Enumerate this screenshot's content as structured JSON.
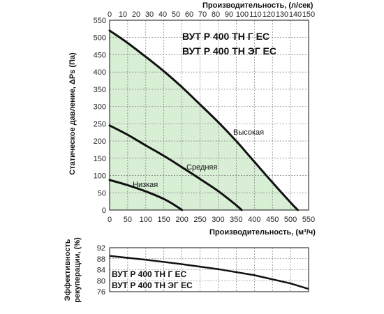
{
  "chart_data": [
    {
      "type": "line",
      "xlabel": "Производительность, (м³/ч)",
      "ylabel": "Статическое давление, ΔPs (Па)",
      "x2label": "Производительность, (л/сек)",
      "xlim": [
        0,
        550
      ],
      "ylim": [
        0,
        550
      ],
      "x2lim": [
        0,
        150
      ],
      "x_ticks": [
        "0",
        "50",
        "100",
        "150",
        "200",
        "250",
        "300",
        "350",
        "400",
        "450",
        "500",
        "550"
      ],
      "y_ticks": [
        "0",
        "50",
        "100",
        "150",
        "200",
        "250",
        "300",
        "350",
        "400",
        "450",
        "500",
        "550"
      ],
      "x2_ticks": [
        "0",
        "10",
        "20",
        "30",
        "40",
        "50",
        "60",
        "70",
        "80",
        "90",
        "100",
        "110",
        "120",
        "130",
        "140",
        "150"
      ],
      "models": [
        "ВУТ Р 400 ТН Г ЕС",
        "ВУТ Р 400 ТН ЭГ ЕС"
      ],
      "grid": true,
      "fill_color": "#d8efd6",
      "series": [
        {
          "name": "Высокая",
          "x": [
            0,
            50,
            100,
            150,
            200,
            250,
            300,
            350,
            400,
            450,
            500,
            520
          ],
          "y": [
            520,
            484,
            444,
            402,
            356,
            306,
            255,
            200,
            140,
            80,
            22,
            0
          ]
        },
        {
          "name": "Средняя",
          "x": [
            0,
            50,
            100,
            150,
            200,
            250,
            300,
            350,
            365
          ],
          "y": [
            245,
            218,
            187,
            157,
            124,
            90,
            55,
            14,
            0
          ]
        },
        {
          "name": "Низкая",
          "x": [
            0,
            50,
            100,
            150,
            180,
            200
          ],
          "y": [
            87,
            72,
            54,
            32,
            14,
            0
          ]
        }
      ]
    },
    {
      "type": "line",
      "ylabel": "Эффективность рекуперации, (%)",
      "ylim": [
        76,
        92
      ],
      "xlim": [
        0,
        550
      ],
      "y_ticks": [
        "76",
        "80",
        "84",
        "88",
        "92"
      ],
      "models": [
        "ВУТ Р 400 ТН Г ЕС",
        "ВУТ Р 400 ТН ЭГ ЕС"
      ],
      "grid": true,
      "series": [
        {
          "x": [
            0,
            100,
            200,
            300,
            400,
            500,
            550
          ],
          "y": [
            89,
            87.6,
            86.0,
            84.2,
            82.0,
            79.0,
            77.0
          ]
        }
      ]
    }
  ]
}
